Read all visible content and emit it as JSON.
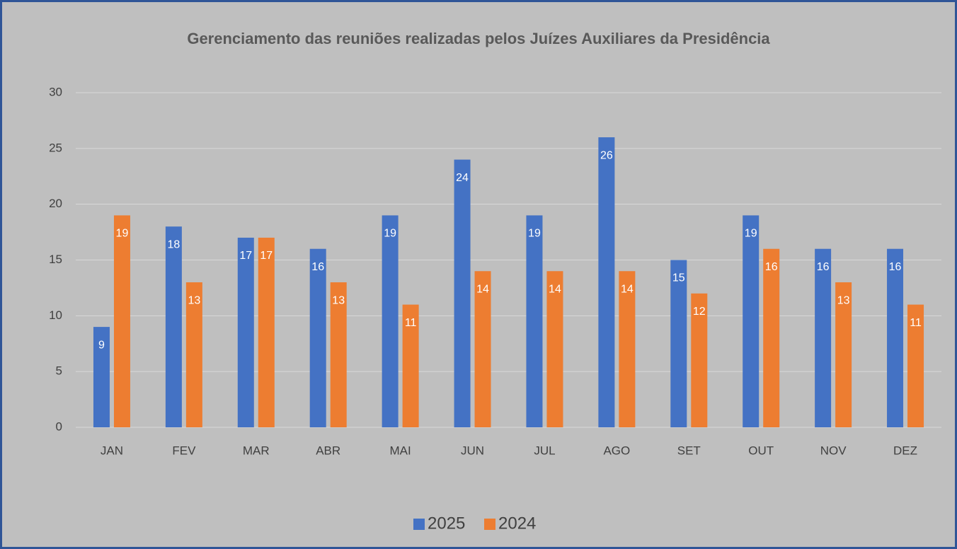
{
  "chart_data": {
    "type": "bar",
    "title": "Gerenciamento das reuniões realizadas pelos Juízes Auxiliares da Presidência",
    "categories": [
      "JAN",
      "FEV",
      "MAR",
      "ABR",
      "MAI",
      "JUN",
      "JUL",
      "AGO",
      "SET",
      "OUT",
      "NOV",
      "DEZ"
    ],
    "series": [
      {
        "name": "2025",
        "color": "#4472c4",
        "values": [
          9,
          18,
          17,
          16,
          19,
          24,
          19,
          26,
          15,
          19,
          16,
          16
        ]
      },
      {
        "name": "2024",
        "color": "#ed7d31",
        "values": [
          19,
          13,
          17,
          13,
          11,
          14,
          14,
          14,
          12,
          16,
          13,
          11
        ]
      }
    ],
    "ylim": [
      0,
      30
    ],
    "yticks": [
      0,
      5,
      10,
      15,
      20,
      25,
      30
    ],
    "grid": true,
    "legend": "bottom"
  }
}
